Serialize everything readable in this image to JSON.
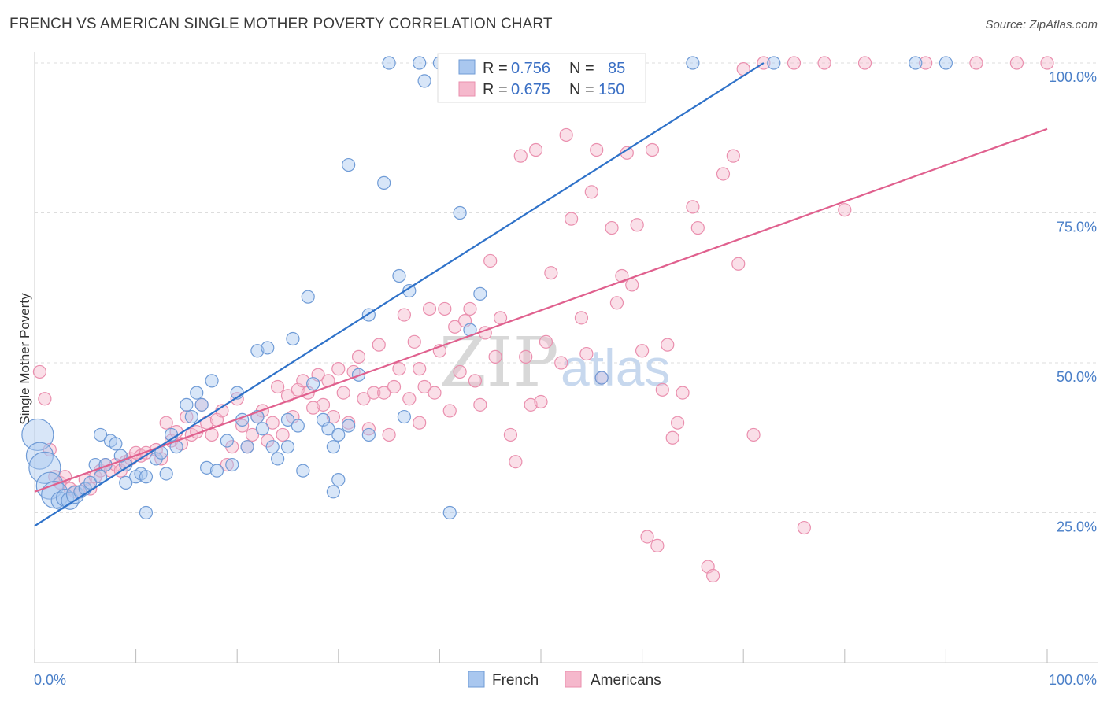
{
  "title": "FRENCH VS AMERICAN SINGLE MOTHER POVERTY CORRELATION CHART",
  "source": "Source: ZipAtlas.com",
  "watermark": {
    "zip": "ZIP",
    "atlas": "atlas"
  },
  "colors": {
    "french_fill": "#a9c7ef",
    "french_stroke": "#6f9bd6",
    "french_line": "#2f72c9",
    "americans_fill": "#f5b8cc",
    "americans_stroke": "#ea8fae",
    "americans_line": "#e0608e",
    "grid": "#dddddd",
    "axis_label": "#4a7fc8"
  },
  "legend": {
    "french": {
      "r_label": "R = ",
      "r": "0.756",
      "n_label": "N = ",
      "n": "85"
    },
    "americans": {
      "r_label": "R = ",
      "r": "0.675",
      "n_label": "N = ",
      "n": "150"
    }
  },
  "chart_data": {
    "type": "scatter",
    "title": "FRENCH VS AMERICAN SINGLE MOTHER POVERTY CORRELATION CHART",
    "xlabel": "",
    "ylabel": "Single Mother Poverty",
    "xlim": [
      0,
      100
    ],
    "ylim": [
      0,
      100
    ],
    "x_tick_labels": [
      "0.0%",
      "100.0%"
    ],
    "y_tick_labels": [
      "25.0%",
      "50.0%",
      "75.0%",
      "100.0%"
    ],
    "y_ticks": [
      25,
      50,
      75,
      100
    ],
    "grid": true,
    "legend_position": "top-center",
    "series": [
      {
        "name": "French",
        "r": 0.756,
        "n": 85,
        "trendline": {
          "x": [
            0,
            72
          ],
          "y": [
            22.8,
            100
          ]
        },
        "points": [
          [
            0.3,
            38,
            5
          ],
          [
            0.5,
            34.5,
            4
          ],
          [
            1,
            32.5,
            5
          ],
          [
            1.5,
            29.5,
            4
          ],
          [
            2,
            28,
            4
          ],
          [
            2.5,
            27,
            2
          ],
          [
            3,
            27.5,
            2
          ],
          [
            3.5,
            27,
            2
          ],
          [
            4,
            28,
            2
          ],
          [
            4.5,
            28.5,
            1
          ],
          [
            5,
            29,
            1
          ],
          [
            5.5,
            30,
            1
          ],
          [
            6,
            33,
            1
          ],
          [
            7,
            33,
            1
          ],
          [
            6.5,
            31,
            1
          ],
          [
            6.5,
            38,
            1
          ],
          [
            7.5,
            37,
            1
          ],
          [
            8,
            36.5,
            1
          ],
          [
            9,
            33,
            1
          ],
          [
            8.5,
            34.5,
            1
          ],
          [
            9,
            30,
            1
          ],
          [
            10,
            31,
            1
          ],
          [
            10.5,
            31.5,
            1
          ],
          [
            11,
            31,
            1
          ],
          [
            11,
            25,
            1
          ],
          [
            12,
            34,
            1
          ],
          [
            12.5,
            35,
            1
          ],
          [
            13,
            31.5,
            1
          ],
          [
            13.5,
            38,
            1
          ],
          [
            14,
            36,
            1
          ],
          [
            15,
            43,
            1
          ],
          [
            15.5,
            41,
            1
          ],
          [
            16,
            45,
            1
          ],
          [
            16.5,
            43,
            1
          ],
          [
            17,
            32.5,
            1
          ],
          [
            17.5,
            47,
            1
          ],
          [
            18,
            32,
            1
          ],
          [
            19,
            37,
            1
          ],
          [
            19.5,
            33,
            1
          ],
          [
            20,
            45,
            1
          ],
          [
            20.5,
            40.5,
            1
          ],
          [
            21,
            36,
            1
          ],
          [
            22,
            41,
            1
          ],
          [
            22,
            52,
            1
          ],
          [
            22.5,
            39,
            1
          ],
          [
            23,
            52.5,
            1
          ],
          [
            23.5,
            36,
            1
          ],
          [
            24,
            34,
            1
          ],
          [
            25,
            36,
            1
          ],
          [
            25,
            40.5,
            1
          ],
          [
            25.5,
            54,
            1
          ],
          [
            26,
            39.5,
            1
          ],
          [
            26.5,
            32,
            1
          ],
          [
            27,
            61,
            1
          ],
          [
            27.5,
            46.5,
            1
          ],
          [
            28.5,
            40.5,
            1
          ],
          [
            29,
            39,
            1
          ],
          [
            29.5,
            28.5,
            1
          ],
          [
            29.5,
            36,
            1
          ],
          [
            30,
            30.5,
            1
          ],
          [
            30,
            38,
            1
          ],
          [
            31,
            83,
            1
          ],
          [
            31,
            39.5,
            1
          ],
          [
            32,
            48,
            1
          ],
          [
            33,
            58,
            1
          ],
          [
            33,
            38,
            1
          ],
          [
            34.5,
            80,
            1
          ],
          [
            35,
            100,
            1
          ],
          [
            36,
            64.5,
            1
          ],
          [
            36.5,
            41,
            1
          ],
          [
            37,
            62,
            1
          ],
          [
            38,
            100,
            1
          ],
          [
            38.5,
            97,
            1
          ],
          [
            40,
            100,
            1
          ],
          [
            41,
            100,
            1
          ],
          [
            41,
            25,
            1
          ],
          [
            42,
            75,
            1
          ],
          [
            43,
            55.5,
            1
          ],
          [
            44,
            61.5,
            1
          ],
          [
            45,
            100,
            1
          ],
          [
            47.5,
            100,
            1
          ],
          [
            51,
            100,
            1
          ],
          [
            56,
            47.5,
            1
          ],
          [
            73,
            100,
            1
          ],
          [
            87,
            100,
            1
          ],
          [
            65,
            100,
            1
          ],
          [
            90,
            100,
            1
          ]
        ]
      },
      {
        "name": "Americans",
        "r": 0.675,
        "n": 150,
        "trendline": {
          "x": [
            0,
            100
          ],
          "y": [
            28.5,
            89
          ]
        },
        "points": [
          [
            0.5,
            48.5,
            1
          ],
          [
            1,
            44,
            1
          ],
          [
            1.5,
            35.5,
            1
          ],
          [
            2,
            31,
            1
          ],
          [
            2.5,
            30,
            1
          ],
          [
            3,
            31,
            1
          ],
          [
            3.5,
            29,
            1
          ],
          [
            4,
            28.5,
            1
          ],
          [
            4.5,
            28.5,
            1
          ],
          [
            5,
            30.5,
            1
          ],
          [
            5.5,
            29,
            1
          ],
          [
            6,
            31,
            1
          ],
          [
            6.5,
            32,
            1
          ],
          [
            7,
            33,
            1
          ],
          [
            7.5,
            32,
            1
          ],
          [
            8,
            33,
            1
          ],
          [
            8.5,
            32,
            1
          ],
          [
            9,
            33.5,
            1
          ],
          [
            9.5,
            34,
            1
          ],
          [
            10,
            35,
            1
          ],
          [
            10.5,
            34.5,
            1
          ],
          [
            11,
            35,
            1
          ],
          [
            12,
            35.5,
            1
          ],
          [
            12.5,
            34,
            1
          ],
          [
            13,
            40,
            1
          ],
          [
            13.5,
            37,
            1
          ],
          [
            14,
            38.5,
            1
          ],
          [
            14.5,
            36.5,
            1
          ],
          [
            15,
            41,
            1
          ],
          [
            15.5,
            38,
            1
          ],
          [
            16,
            38.5,
            1
          ],
          [
            16.5,
            43,
            1
          ],
          [
            17,
            40,
            1
          ],
          [
            17.5,
            38,
            1
          ],
          [
            18,
            40.5,
            1
          ],
          [
            18.5,
            42,
            1
          ],
          [
            19,
            33,
            1
          ],
          [
            19.5,
            36,
            1
          ],
          [
            20,
            44,
            1
          ],
          [
            20.5,
            39.5,
            1
          ],
          [
            21,
            36,
            1
          ],
          [
            21.5,
            38,
            1
          ],
          [
            22,
            41,
            1
          ],
          [
            22.5,
            42,
            1
          ],
          [
            23,
            37,
            1
          ],
          [
            23.5,
            40,
            1
          ],
          [
            24,
            46,
            1
          ],
          [
            24.5,
            38,
            1
          ],
          [
            25,
            44.5,
            1
          ],
          [
            25.5,
            41,
            1
          ],
          [
            26,
            45.5,
            1
          ],
          [
            26.5,
            47,
            1
          ],
          [
            27,
            45,
            1
          ],
          [
            27.5,
            42.5,
            1
          ],
          [
            28,
            48,
            1
          ],
          [
            28.5,
            43,
            1
          ],
          [
            29,
            47,
            1
          ],
          [
            29.5,
            41,
            1
          ],
          [
            30,
            49,
            1
          ],
          [
            30.5,
            45,
            1
          ],
          [
            31,
            40,
            1
          ],
          [
            31.5,
            48.5,
            1
          ],
          [
            32,
            51,
            1
          ],
          [
            32.5,
            44,
            1
          ],
          [
            33,
            39,
            1
          ],
          [
            33.5,
            45,
            1
          ],
          [
            34,
            53,
            1
          ],
          [
            34.5,
            45,
            1
          ],
          [
            35,
            38,
            1
          ],
          [
            35.5,
            46,
            1
          ],
          [
            36,
            49,
            1
          ],
          [
            36.5,
            58,
            1
          ],
          [
            37,
            44,
            1
          ],
          [
            37.5,
            53.5,
            1
          ],
          [
            38,
            40,
            1
          ],
          [
            38.5,
            46,
            1
          ],
          [
            39,
            59,
            1
          ],
          [
            39.5,
            45,
            1
          ],
          [
            40,
            52,
            1
          ],
          [
            40.5,
            59,
            1
          ],
          [
            41,
            42,
            1
          ],
          [
            41.5,
            56,
            1
          ],
          [
            42,
            48.5,
            1
          ],
          [
            42.5,
            57,
            1
          ],
          [
            43,
            59,
            1
          ],
          [
            43.5,
            47,
            1
          ],
          [
            44,
            43,
            1
          ],
          [
            44.5,
            55,
            1
          ],
          [
            45,
            67,
            1
          ],
          [
            45.5,
            51,
            1
          ],
          [
            46,
            57.5,
            1
          ],
          [
            47,
            38,
            1
          ],
          [
            47.5,
            33.5,
            1
          ],
          [
            48,
            84.5,
            1
          ],
          [
            48.5,
            51,
            1
          ],
          [
            49,
            43,
            1
          ],
          [
            49.5,
            85.5,
            1
          ],
          [
            50,
            43.5,
            1
          ],
          [
            50.5,
            53.5,
            1
          ],
          [
            51,
            65,
            1
          ],
          [
            52,
            50,
            1
          ],
          [
            52.5,
            88,
            1
          ],
          [
            53,
            74,
            1
          ],
          [
            54,
            57.5,
            1
          ],
          [
            54.5,
            51.5,
            1
          ],
          [
            55,
            78.5,
            1
          ],
          [
            55.5,
            85.5,
            1
          ],
          [
            56,
            47.5,
            1
          ],
          [
            57,
            72.5,
            1
          ],
          [
            57.5,
            60,
            1
          ],
          [
            58,
            64.5,
            1
          ],
          [
            58.5,
            85,
            1
          ],
          [
            59,
            63,
            1
          ],
          [
            59.5,
            73,
            1
          ],
          [
            60,
            52,
            1
          ],
          [
            60.5,
            21,
            1
          ],
          [
            61,
            85.5,
            1
          ],
          [
            61.5,
            19.5,
            1
          ],
          [
            62,
            45.5,
            1
          ],
          [
            62.5,
            53,
            1
          ],
          [
            63,
            37.5,
            1
          ],
          [
            63.5,
            40,
            1
          ],
          [
            64,
            45,
            1
          ],
          [
            65,
            76,
            1
          ],
          [
            65.5,
            72.5,
            1
          ],
          [
            66.5,
            16,
            1
          ],
          [
            67,
            14.5,
            1
          ],
          [
            68,
            81.5,
            1
          ],
          [
            69,
            84.5,
            1
          ],
          [
            69.5,
            66.5,
            1
          ],
          [
            71,
            38,
            1
          ],
          [
            76,
            22.5,
            1
          ],
          [
            80,
            75.5,
            1
          ],
          [
            70,
            99,
            1
          ],
          [
            72,
            100,
            1
          ],
          [
            75,
            100,
            1
          ],
          [
            78,
            100,
            1
          ],
          [
            82,
            100,
            1
          ],
          [
            88,
            100,
            1
          ],
          [
            93,
            100,
            1
          ],
          [
            100,
            100,
            1
          ],
          [
            97,
            100,
            1
          ],
          [
            38,
            49,
            1
          ]
        ]
      }
    ]
  },
  "bottom_legend": {
    "french": "French",
    "americans": "Americans"
  }
}
